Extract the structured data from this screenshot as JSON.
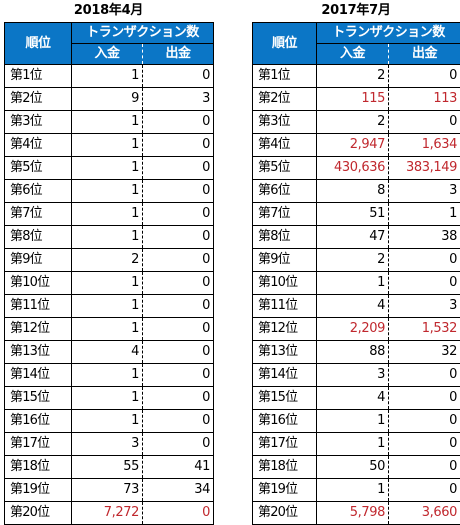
{
  "header_labels": {
    "rank": "順位",
    "transactions": "トランザクション数",
    "in": "入金",
    "out": "出金"
  },
  "tables": [
    {
      "title": "2018年4月",
      "rows": [
        {
          "rank": "第1位",
          "in": "1",
          "out": "0",
          "highlight": false
        },
        {
          "rank": "第2位",
          "in": "9",
          "out": "3",
          "highlight": false
        },
        {
          "rank": "第3位",
          "in": "1",
          "out": "0",
          "highlight": false
        },
        {
          "rank": "第4位",
          "in": "1",
          "out": "0",
          "highlight": false
        },
        {
          "rank": "第5位",
          "in": "1",
          "out": "0",
          "highlight": false
        },
        {
          "rank": "第6位",
          "in": "1",
          "out": "0",
          "highlight": false
        },
        {
          "rank": "第7位",
          "in": "1",
          "out": "0",
          "highlight": false
        },
        {
          "rank": "第8位",
          "in": "1",
          "out": "0",
          "highlight": false
        },
        {
          "rank": "第9位",
          "in": "2",
          "out": "0",
          "highlight": false
        },
        {
          "rank": "第10位",
          "in": "1",
          "out": "0",
          "highlight": false
        },
        {
          "rank": "第11位",
          "in": "1",
          "out": "0",
          "highlight": false
        },
        {
          "rank": "第12位",
          "in": "1",
          "out": "0",
          "highlight": false
        },
        {
          "rank": "第13位",
          "in": "4",
          "out": "0",
          "highlight": false
        },
        {
          "rank": "第14位",
          "in": "1",
          "out": "0",
          "highlight": false
        },
        {
          "rank": "第15位",
          "in": "1",
          "out": "0",
          "highlight": false
        },
        {
          "rank": "第16位",
          "in": "1",
          "out": "0",
          "highlight": false
        },
        {
          "rank": "第17位",
          "in": "3",
          "out": "0",
          "highlight": false
        },
        {
          "rank": "第18位",
          "in": "55",
          "out": "41",
          "highlight": false
        },
        {
          "rank": "第19位",
          "in": "73",
          "out": "34",
          "highlight": false
        },
        {
          "rank": "第20位",
          "in": "7,272",
          "out": "0",
          "highlight": true
        }
      ]
    },
    {
      "title": "2017年7月",
      "rows": [
        {
          "rank": "第1位",
          "in": "2",
          "out": "0",
          "highlight": false
        },
        {
          "rank": "第2位",
          "in": "115",
          "out": "113",
          "highlight": true
        },
        {
          "rank": "第3位",
          "in": "2",
          "out": "0",
          "highlight": false
        },
        {
          "rank": "第4位",
          "in": "2,947",
          "out": "1,634",
          "highlight": true
        },
        {
          "rank": "第5位",
          "in": "430,636",
          "out": "383,149",
          "highlight": true
        },
        {
          "rank": "第6位",
          "in": "8",
          "out": "3",
          "highlight": false
        },
        {
          "rank": "第7位",
          "in": "51",
          "out": "1",
          "highlight": false
        },
        {
          "rank": "第8位",
          "in": "47",
          "out": "38",
          "highlight": false
        },
        {
          "rank": "第9位",
          "in": "2",
          "out": "0",
          "highlight": false
        },
        {
          "rank": "第10位",
          "in": "1",
          "out": "0",
          "highlight": false
        },
        {
          "rank": "第11位",
          "in": "4",
          "out": "3",
          "highlight": false
        },
        {
          "rank": "第12位",
          "in": "2,209",
          "out": "1,532",
          "highlight": true
        },
        {
          "rank": "第13位",
          "in": "88",
          "out": "32",
          "highlight": false
        },
        {
          "rank": "第14位",
          "in": "3",
          "out": "0",
          "highlight": false
        },
        {
          "rank": "第15位",
          "in": "4",
          "out": "0",
          "highlight": false
        },
        {
          "rank": "第16位",
          "in": "1",
          "out": "0",
          "highlight": false
        },
        {
          "rank": "第17位",
          "in": "1",
          "out": "0",
          "highlight": false
        },
        {
          "rank": "第18位",
          "in": "50",
          "out": "0",
          "highlight": false
        },
        {
          "rank": "第19位",
          "in": "1",
          "out": "0",
          "highlight": false
        },
        {
          "rank": "第20位",
          "in": "5,798",
          "out": "3,660",
          "highlight": true
        }
      ]
    }
  ],
  "colors": {
    "header_bg": "#0b76c6",
    "highlight_text": "#c0282e"
  }
}
